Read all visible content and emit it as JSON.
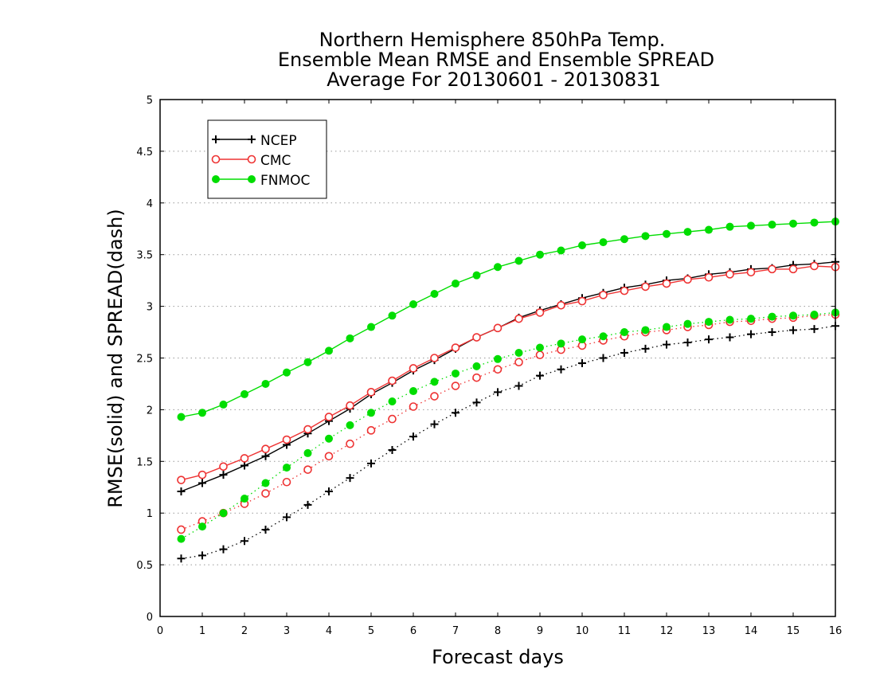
{
  "chart_data": {
    "type": "line",
    "title_lines": [
      "Northern Hemisphere 850hPa Temp.",
      "Ensemble Mean RMSE and Ensemble SPREAD",
      "Average For 20130601 - 20130831"
    ],
    "xlabel": "Forecast days",
    "ylabel": "RMSE(solid) and SPREAD(dash)",
    "xlim": [
      0,
      16
    ],
    "ylim": [
      0,
      5
    ],
    "x_ticks": [
      "0",
      "1",
      "2",
      "3",
      "4",
      "5",
      "6",
      "7",
      "8",
      "9",
      "10",
      "11",
      "12",
      "13",
      "14",
      "15",
      "16"
    ],
    "y_ticks": [
      "0",
      "0.5",
      "1",
      "1.5",
      "2",
      "2.5",
      "3",
      "3.5",
      "4",
      "4.5",
      "5"
    ],
    "grid": "horizontal dotted",
    "legend_position": "top-left",
    "x": [
      0.5,
      1,
      1.5,
      2,
      2.5,
      3,
      3.5,
      4,
      4.5,
      5,
      5.5,
      6,
      6.5,
      7,
      7.5,
      8,
      8.5,
      9,
      9.5,
      10,
      10.5,
      11,
      11.5,
      12,
      12.5,
      13,
      13.5,
      14,
      14.5,
      15,
      15.5,
      16
    ],
    "series": [
      {
        "name": "NCEP",
        "color": "#000000",
        "marker": "plus",
        "rmse": [
          1.21,
          1.29,
          1.37,
          1.46,
          1.55,
          1.66,
          1.77,
          1.89,
          2.01,
          2.15,
          2.26,
          2.38,
          2.48,
          2.59,
          2.7,
          2.79,
          2.89,
          2.96,
          3.02,
          3.08,
          3.13,
          3.18,
          3.21,
          3.25,
          3.27,
          3.31,
          3.33,
          3.36,
          3.37,
          3.4,
          3.41,
          3.43
        ],
        "spread": [
          0.56,
          0.59,
          0.65,
          0.73,
          0.84,
          0.96,
          1.08,
          1.21,
          1.34,
          1.48,
          1.61,
          1.74,
          1.86,
          1.97,
          2.07,
          2.17,
          2.23,
          2.33,
          2.39,
          2.45,
          2.5,
          2.55,
          2.59,
          2.63,
          2.65,
          2.68,
          2.7,
          2.73,
          2.75,
          2.77,
          2.78,
          2.81
        ]
      },
      {
        "name": "CMC",
        "color": "#ee3333",
        "marker": "open-circle",
        "rmse": [
          1.32,
          1.37,
          1.45,
          1.53,
          1.62,
          1.71,
          1.81,
          1.93,
          2.04,
          2.17,
          2.28,
          2.4,
          2.5,
          2.6,
          2.7,
          2.79,
          2.88,
          2.94,
          3.01,
          3.05,
          3.11,
          3.15,
          3.19,
          3.22,
          3.26,
          3.28,
          3.31,
          3.33,
          3.36,
          3.36,
          3.39,
          3.38
        ],
        "spread": [
          0.84,
          0.92,
          1.0,
          1.09,
          1.19,
          1.3,
          1.42,
          1.55,
          1.67,
          1.8,
          1.91,
          2.03,
          2.13,
          2.23,
          2.31,
          2.39,
          2.46,
          2.53,
          2.58,
          2.62,
          2.67,
          2.71,
          2.75,
          2.77,
          2.8,
          2.82,
          2.85,
          2.86,
          2.88,
          2.89,
          2.91,
          2.92
        ]
      },
      {
        "name": "FNMOC",
        "color": "#00dd00",
        "marker": "filled-circle",
        "rmse": [
          1.93,
          1.97,
          2.05,
          2.15,
          2.25,
          2.36,
          2.46,
          2.57,
          2.69,
          2.8,
          2.91,
          3.02,
          3.12,
          3.22,
          3.3,
          3.38,
          3.44,
          3.5,
          3.54,
          3.59,
          3.62,
          3.65,
          3.68,
          3.7,
          3.72,
          3.74,
          3.77,
          3.78,
          3.79,
          3.8,
          3.81,
          3.82
        ],
        "spread": [
          0.75,
          0.87,
          1.0,
          1.14,
          1.29,
          1.44,
          1.58,
          1.72,
          1.85,
          1.97,
          2.08,
          2.18,
          2.27,
          2.35,
          2.42,
          2.49,
          2.55,
          2.6,
          2.64,
          2.68,
          2.71,
          2.75,
          2.77,
          2.8,
          2.83,
          2.85,
          2.87,
          2.88,
          2.9,
          2.91,
          2.92,
          2.94
        ]
      }
    ]
  }
}
